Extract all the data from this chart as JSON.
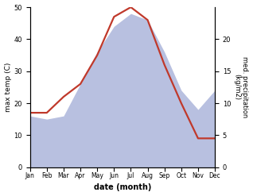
{
  "months": [
    "Jan",
    "Feb",
    "Mar",
    "Apr",
    "May",
    "Jun",
    "Jul",
    "Aug",
    "Sep",
    "Oct",
    "Nov",
    "Dec"
  ],
  "temperature": [
    17,
    17,
    22,
    26,
    35,
    47,
    50,
    46,
    32,
    20,
    9,
    9
  ],
  "precipitation": [
    8,
    7.5,
    8,
    13,
    18,
    22,
    24,
    23,
    18,
    12,
    9,
    12
  ],
  "temp_color": "#c0392b",
  "precip_color_fill": "#b8c0e0",
  "ylabel_left": "max temp (C)",
  "ylabel_right": "med. precipitation\n(kg/m2)",
  "xlabel": "date (month)",
  "ylim_left": [
    0,
    50
  ],
  "ylim_right": [
    0,
    25
  ],
  "yticks_left": [
    0,
    10,
    20,
    30,
    40,
    50
  ],
  "yticks_right": [
    0,
    5,
    10,
    15,
    20
  ],
  "precip_scale": 2.0,
  "line_width": 1.6
}
